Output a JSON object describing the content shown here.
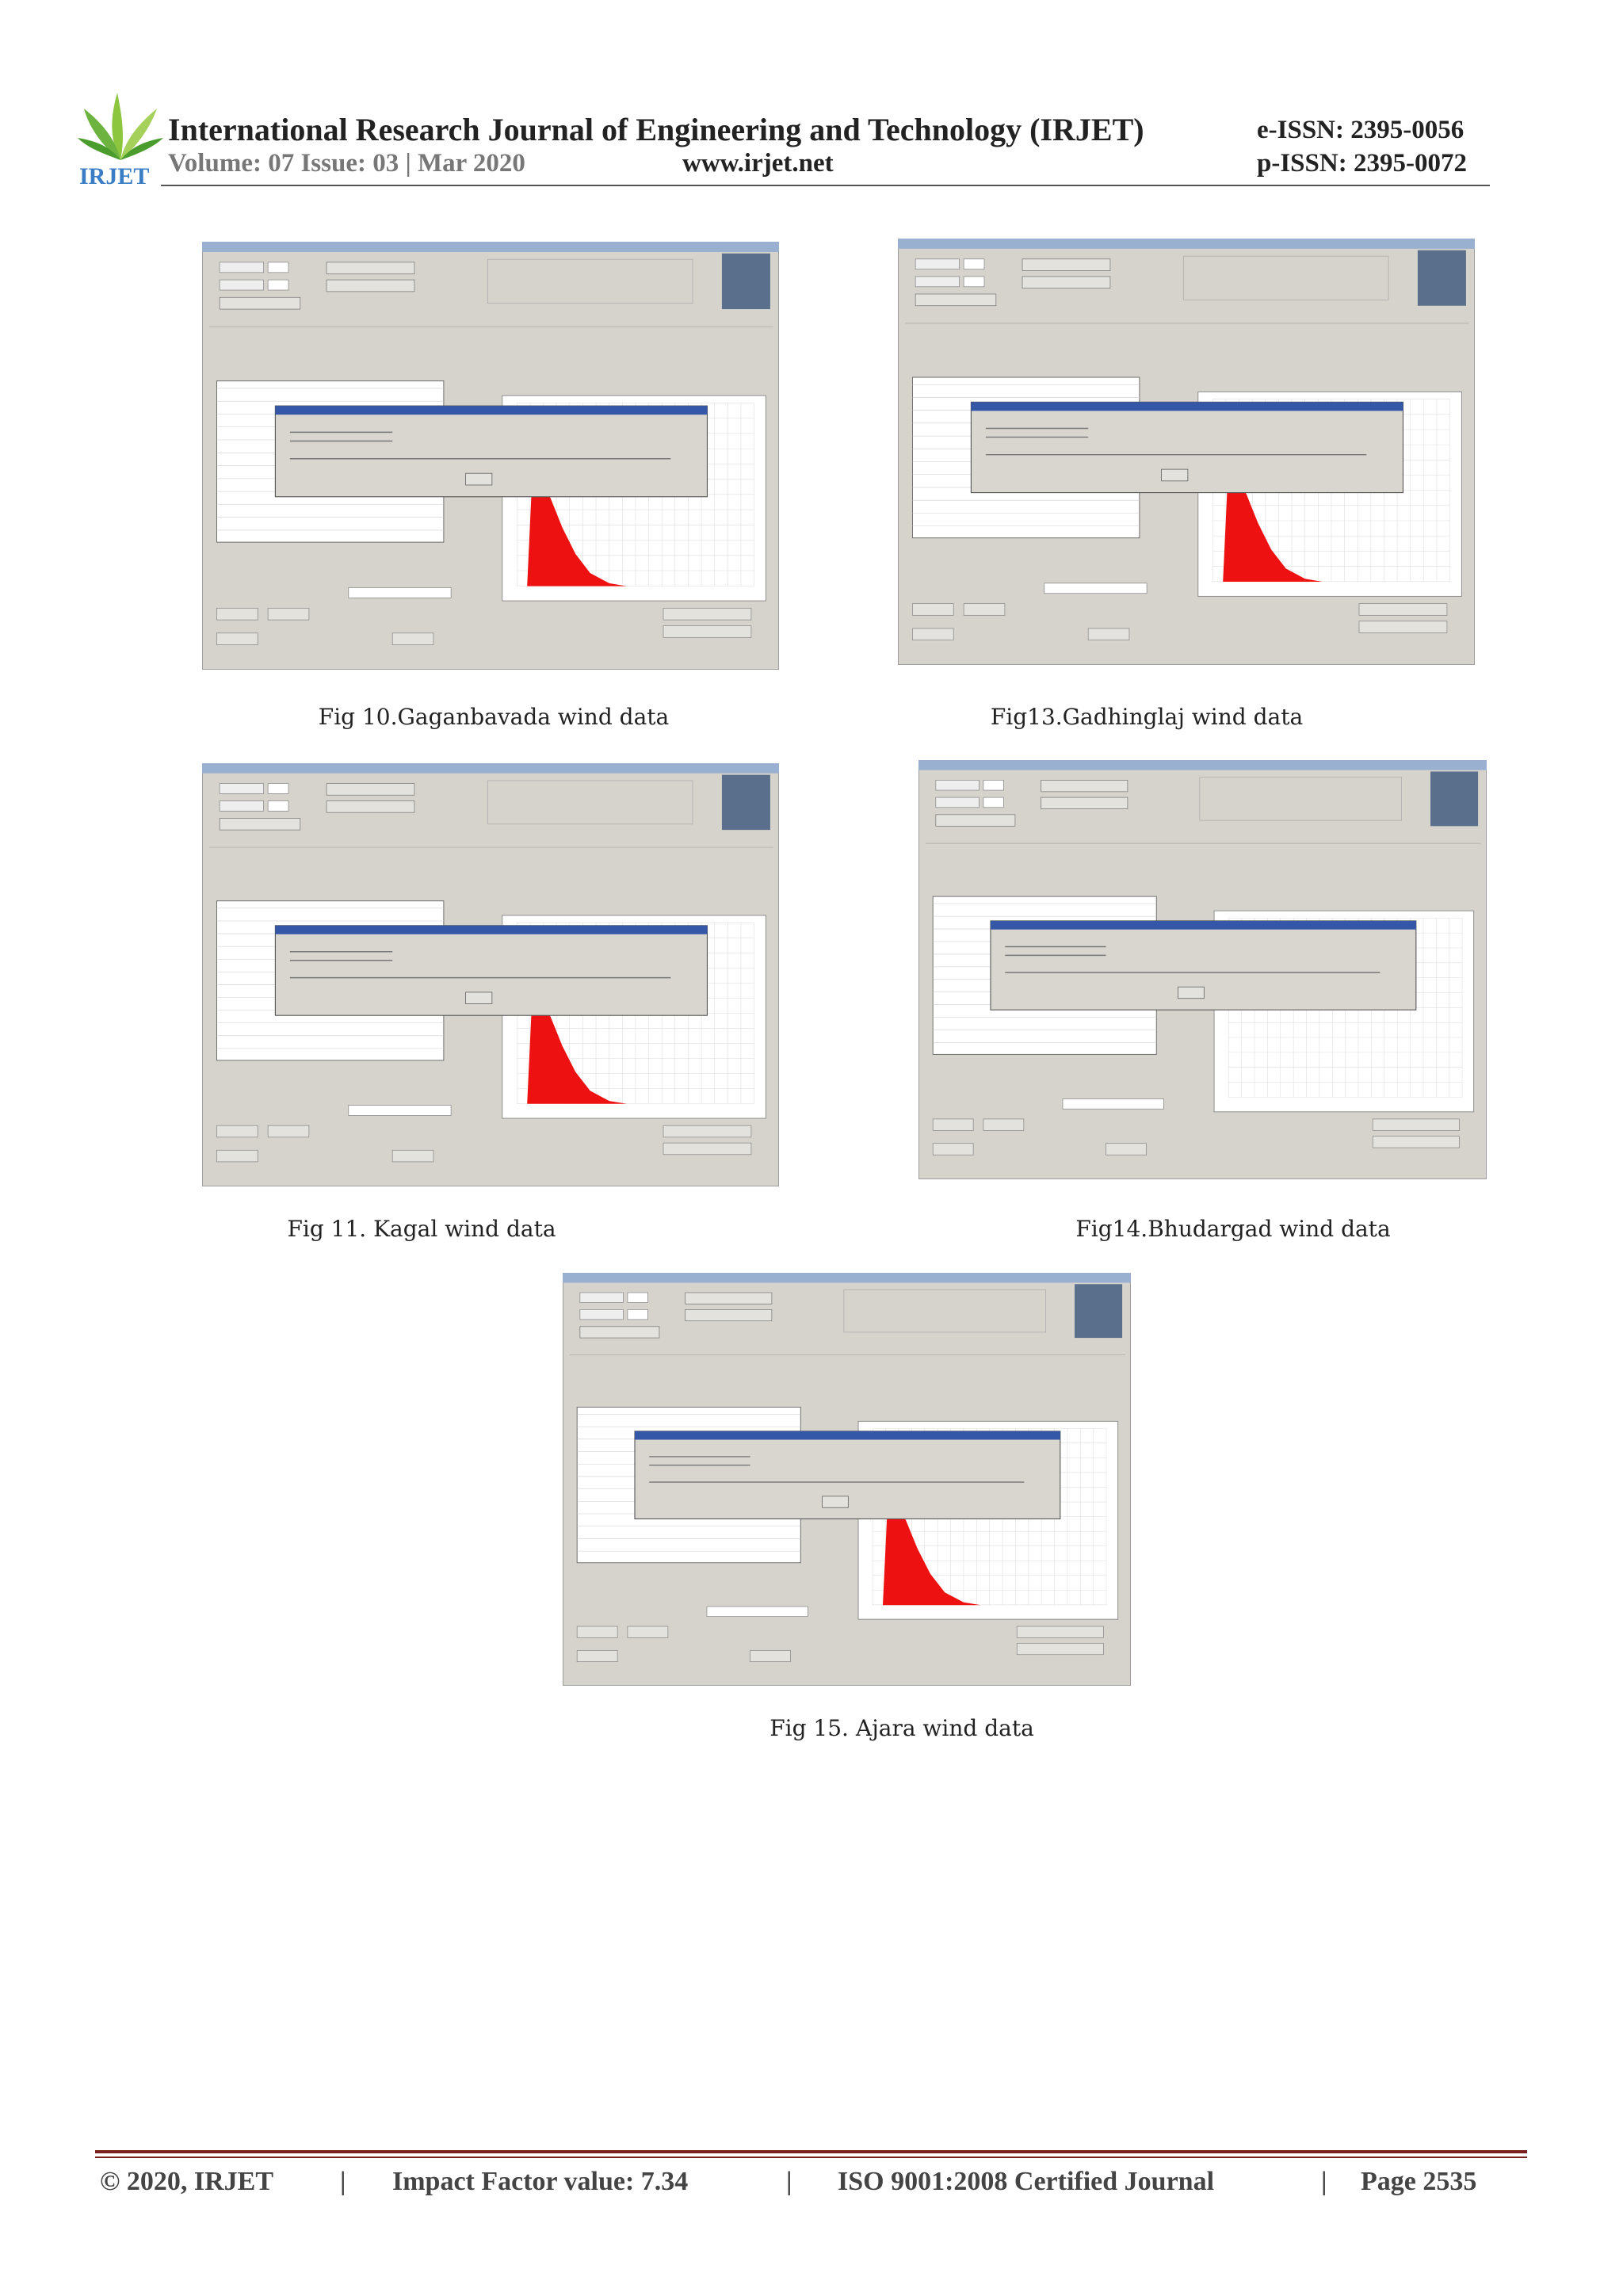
{
  "header": {
    "title": "International Research Journal of Engineering and Technology (IRJET)",
    "eissn": "e-ISSN: 2395-0056",
    "volume_issue": "Volume: 07 Issue: 03 | Mar 2020",
    "website": "www.irjet.net",
    "pissn": "p-ISSN: 2395-0072",
    "logo_text": "IRJET"
  },
  "figures": [
    {
      "caption": "Fig 10.Gaganbavada wind data"
    },
    {
      "caption": "Fig13.Gadhinglaj wind data"
    },
    {
      "caption": "Fig 11. Kagal wind data"
    },
    {
      "caption": "Fig14.Bhudargad wind data"
    },
    {
      "caption": "Fig 15. Ajara wind data"
    }
  ],
  "footer": {
    "copyright": "© 2020, IRJET",
    "impact_factor": "Impact Factor value: 7.34",
    "certification": "ISO 9001:2008 Certified Journal",
    "page": "Page 2535",
    "separators": [
      "|",
      "|",
      "|"
    ]
  }
}
